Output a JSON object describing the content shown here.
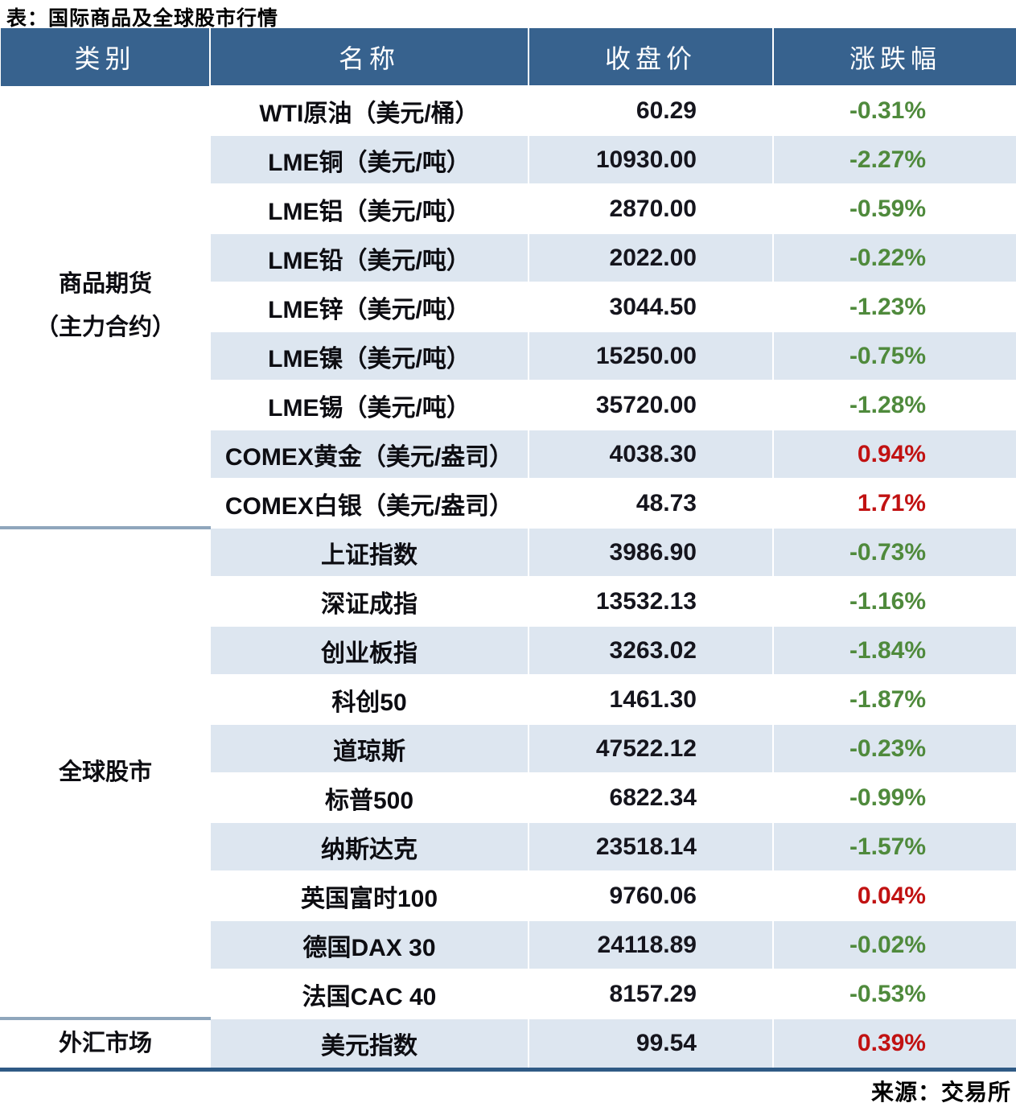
{
  "title": "表：国际商品及全球股市行情",
  "source": "来源：交易所",
  "chart_data": {
    "type": "table",
    "title": "表：国际商品及全球股市行情",
    "source": "来源：交易所",
    "columns": [
      "类别",
      "名称",
      "收盘价",
      "涨跌幅"
    ],
    "sections": [
      {
        "category": [
          "商品期货",
          "（主力合约）"
        ],
        "rows": [
          {
            "name": "WTI原油（美元/桶）",
            "close": "60.29",
            "change": "-0.31%",
            "dir": "down"
          },
          {
            "name": "LME铜（美元/吨）",
            "close": "10930.00",
            "change": "-2.27%",
            "dir": "down"
          },
          {
            "name": "LME铝（美元/吨）",
            "close": "2870.00",
            "change": "-0.59%",
            "dir": "down"
          },
          {
            "name": "LME铅（美元/吨）",
            "close": "2022.00",
            "change": "-0.22%",
            "dir": "down"
          },
          {
            "name": "LME锌（美元/吨）",
            "close": "3044.50",
            "change": "-1.23%",
            "dir": "down"
          },
          {
            "name": "LME镍（美元/吨）",
            "close": "15250.00",
            "change": "-0.75%",
            "dir": "down"
          },
          {
            "name": "LME锡（美元/吨）",
            "close": "35720.00",
            "change": "-1.28%",
            "dir": "down"
          },
          {
            "name": "COMEX黄金（美元/盎司）",
            "close": "4038.30",
            "change": "0.94%",
            "dir": "up"
          },
          {
            "name": "COMEX白银（美元/盎司）",
            "close": "48.73",
            "change": "1.71%",
            "dir": "up"
          }
        ]
      },
      {
        "category": [
          "全球股市"
        ],
        "rows": [
          {
            "name": "上证指数",
            "close": "3986.90",
            "change": "-0.73%",
            "dir": "down"
          },
          {
            "name": "深证成指",
            "close": "13532.13",
            "change": "-1.16%",
            "dir": "down"
          },
          {
            "name": "创业板指",
            "close": "3263.02",
            "change": "-1.84%",
            "dir": "down"
          },
          {
            "name": "科创50",
            "close": "1461.30",
            "change": "-1.87%",
            "dir": "down"
          },
          {
            "name": "道琼斯",
            "close": "47522.12",
            "change": "-0.23%",
            "dir": "down"
          },
          {
            "name": "标普500",
            "close": "6822.34",
            "change": "-0.99%",
            "dir": "down"
          },
          {
            "name": "纳斯达克",
            "close": "23518.14",
            "change": "-1.57%",
            "dir": "down"
          },
          {
            "name": "英国富时100",
            "close": "9760.06",
            "change": "0.04%",
            "dir": "up"
          },
          {
            "name": "德国DAX 30",
            "close": "24118.89",
            "change": "-0.02%",
            "dir": "down"
          },
          {
            "name": "法国CAC 40",
            "close": "8157.29",
            "change": "-0.53%",
            "dir": "down"
          }
        ]
      },
      {
        "category": [
          "外汇市场"
        ],
        "rows": [
          {
            "name": "美元指数",
            "close": "99.54",
            "change": "0.39%",
            "dir": "up"
          }
        ]
      }
    ],
    "colors": {
      "header_bg": "#37628E",
      "header_text": "#ffffff",
      "alt_row_bg": "#DDE6F0",
      "up_red": "#C11212",
      "down_green": "#4F8A3C",
      "section_divider": "#8FA6BC",
      "bottom_rule": "#2F5A85"
    }
  }
}
